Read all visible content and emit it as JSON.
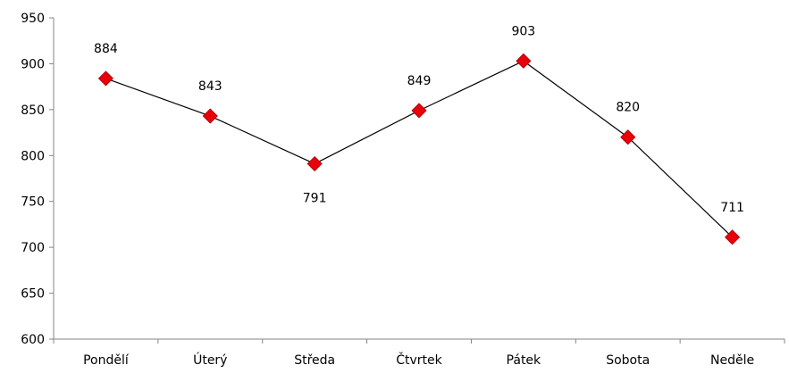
{
  "chart_data": {
    "type": "line",
    "title": "",
    "xlabel": "",
    "ylabel": "",
    "categories": [
      "Pondělí",
      "Úterý",
      "Středa",
      "Čtvrtek",
      "Pátek",
      "Sobota",
      "Neděle"
    ],
    "series": [
      {
        "values": [
          884,
          843,
          791,
          849,
          903,
          820,
          711
        ],
        "color": "#e8000b",
        "line_color": "#000000",
        "marker": "diamond"
      }
    ],
    "ylim": [
      600,
      950
    ],
    "yticks": [
      600,
      650,
      700,
      750,
      800,
      850,
      900,
      950
    ],
    "data_labels": [
      "884",
      "843",
      "791",
      "849",
      "903",
      "820",
      "711"
    ],
    "ytick_labels": [
      "600",
      "650",
      "700",
      "750",
      "800",
      "850",
      "900",
      "950"
    ],
    "grid": false,
    "legend": "none"
  }
}
